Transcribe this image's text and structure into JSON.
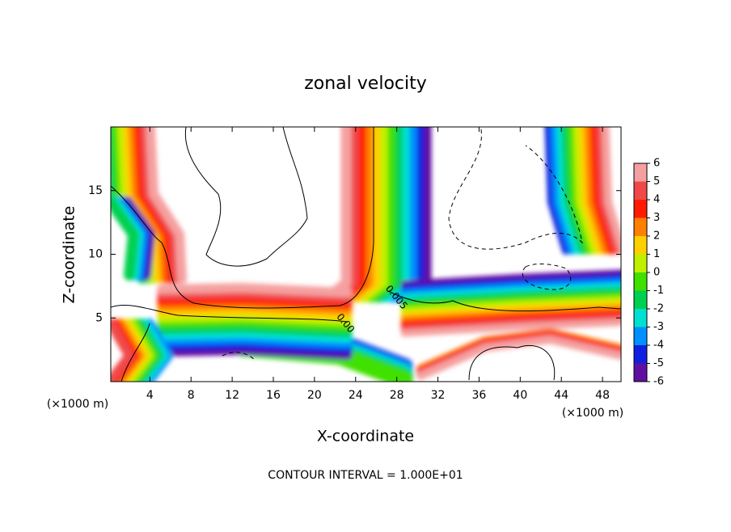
{
  "chart_data": {
    "type": "contour",
    "title": "zonal velocity",
    "x_label": "X-coordinate",
    "y_label": "Z-coordinate",
    "x_unit": "(×1000 m)",
    "y_unit": "(×1000 m)",
    "footer": "CONTOUR INTERVAL = 1.000E+01",
    "xlim": [
      0.2,
      49.8
    ],
    "ylim": [
      0,
      20
    ],
    "xticks": [
      4,
      8,
      12,
      16,
      20,
      24,
      28,
      32,
      36,
      40,
      44,
      48
    ],
    "yticks": [
      5,
      10,
      15
    ],
    "contour_labels": [
      "0.00",
      "0.005"
    ],
    "colorbar": {
      "levels": [
        6,
        5,
        4,
        3,
        2,
        1,
        0,
        -1,
        -2,
        -3,
        -4,
        -5,
        -6
      ],
      "colors": [
        "#f5a0a0",
        "#f04848",
        "#ff1a00",
        "#ff8000",
        "#ffd000",
        "#c0f000",
        "#40e000",
        "#00d050",
        "#00e0d0",
        "#0090ff",
        "#1020e0",
        "#6010a0"
      ]
    }
  }
}
